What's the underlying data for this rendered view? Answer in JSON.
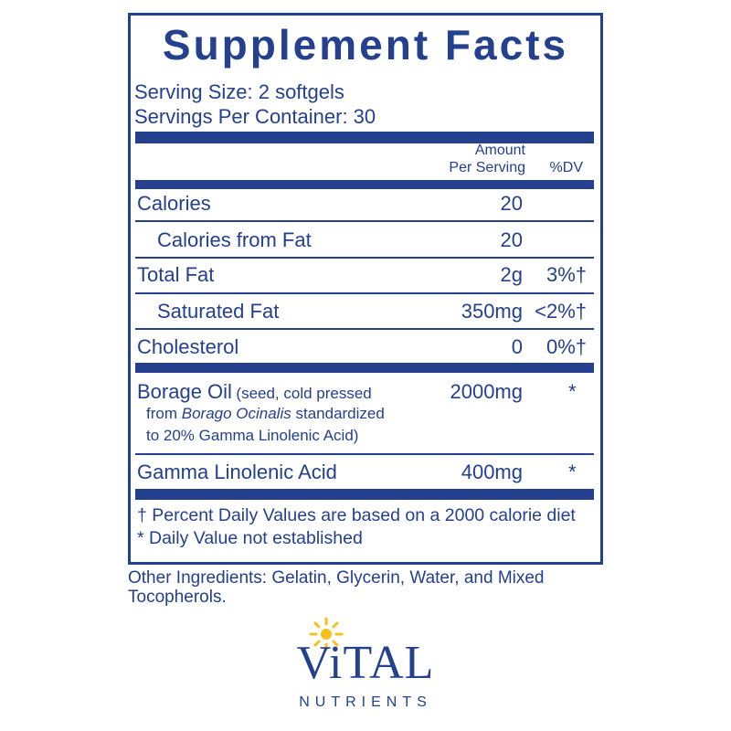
{
  "label": {
    "title": "Supplement Facts",
    "serving_size": "Serving Size: 2 softgels",
    "servings_per_container": "Servings Per Container: 30",
    "header": {
      "amount_line1": "Amount",
      "amount_line2": "Per Serving",
      "dv": "%DV"
    },
    "rows": [
      {
        "name": "Calories",
        "amount": "20"
      },
      {
        "name": "Calories from Fat",
        "amount": "20"
      },
      {
        "name": "Total Fat",
        "amount": "2g",
        "dv": "3%†"
      },
      {
        "name": "Saturated Fat",
        "amount": "350mg",
        "dv": "<2%†"
      },
      {
        "name": "Cholesterol",
        "amount": "0",
        "dv": "0%†"
      },
      {
        "name": "Borage Oil",
        "description_1": "(seed, cold pressed",
        "description_2_prefix": "from",
        "description_2_italic": "Borago Ocinalis",
        "description_2_suffix": "standardized",
        "description_3": "to 20% Gamma Linolenic Acid)",
        "amount": "2000mg",
        "dv": "*"
      },
      {
        "name": "Gamma Linolenic Acid",
        "amount": "400mg",
        "dv": "*"
      }
    ],
    "footnotes": [
      "† Percent Daily Values are based on a 2000 calorie diet",
      "* Daily Value not established"
    ]
  },
  "other_ingredients": [
    "Other Ingredients: Gelatin, Glycerin, Water, and Mixed",
    "Tocopherols."
  ],
  "logo": {
    "brand": "ViTAL",
    "tagline": "NUTRIENTS"
  }
}
